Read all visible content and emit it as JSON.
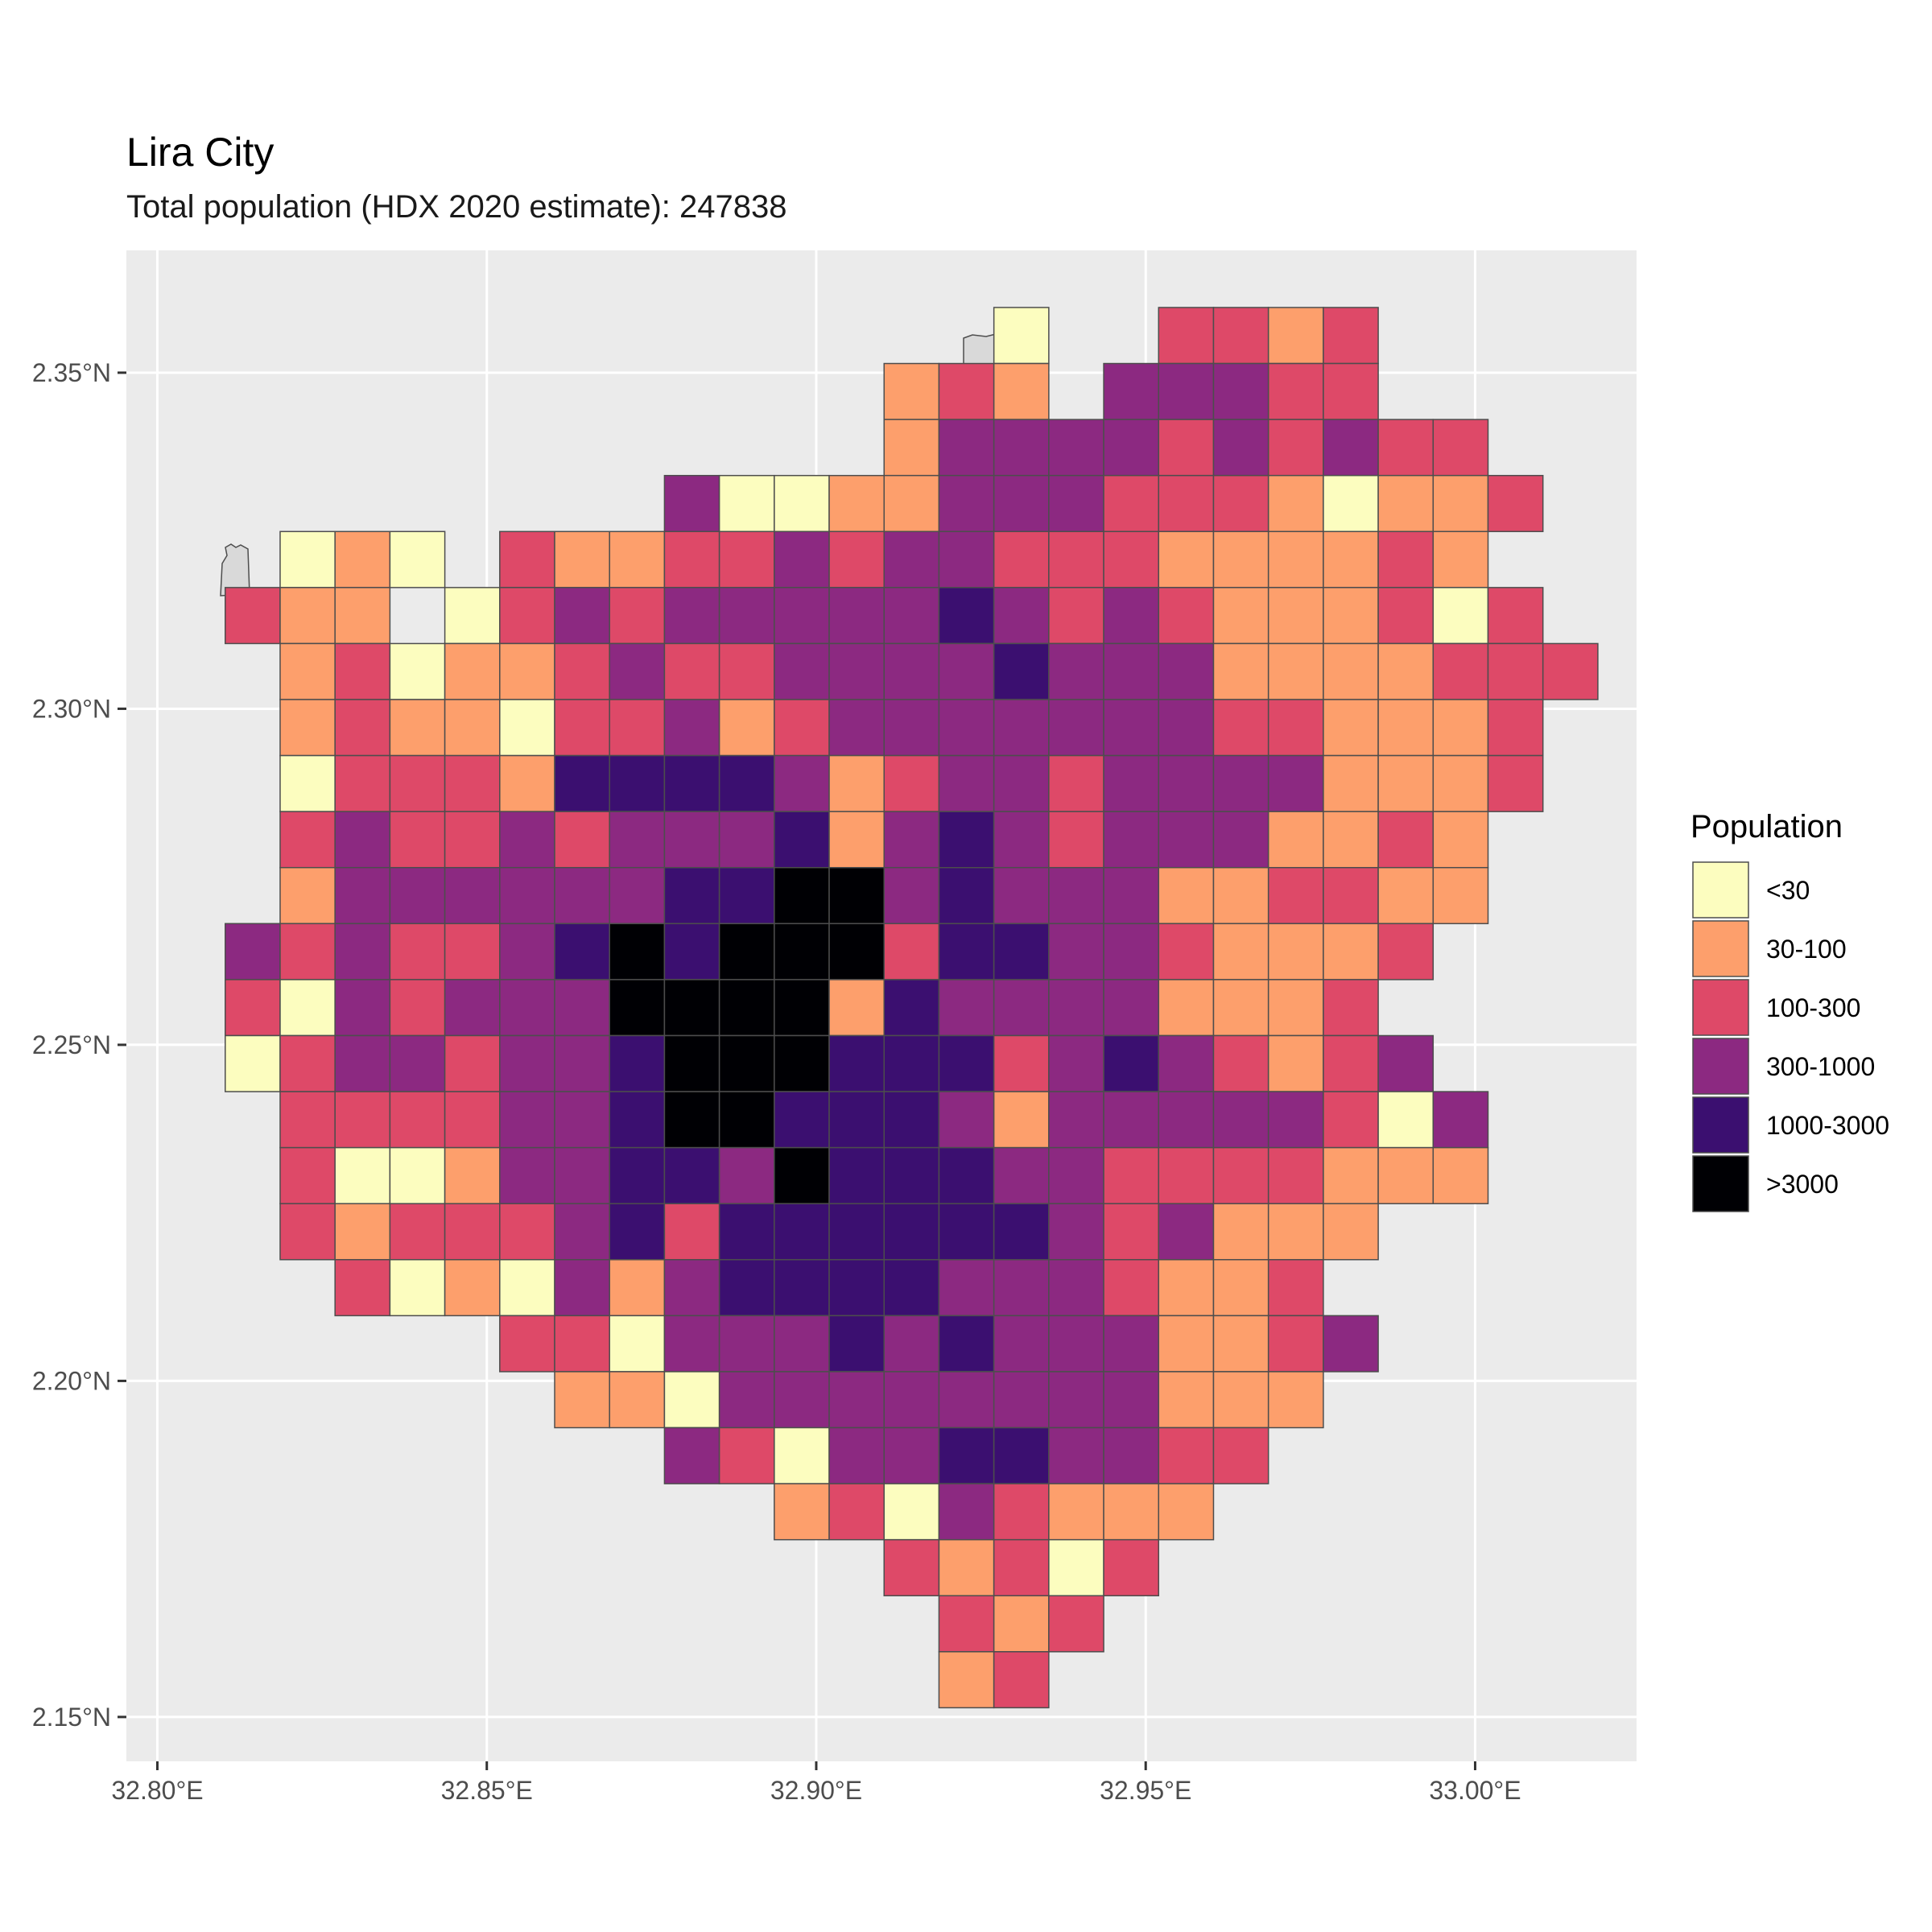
{
  "chart_data": {
    "type": "heatmap",
    "title": "Lira City",
    "subtitle": "Total population (HDX 2020 estimate): 247838",
    "xlabel": "",
    "ylabel": "",
    "grid": true,
    "legend_position": "right",
    "x_ticks": [
      {
        "value": 32.8,
        "label": "32.80°E"
      },
      {
        "value": 32.85,
        "label": "32.85°E"
      },
      {
        "value": 32.9,
        "label": "32.90°E"
      },
      {
        "value": 32.95,
        "label": "32.95°E"
      },
      {
        "value": 33.0,
        "label": "33.00°E"
      }
    ],
    "y_ticks": [
      {
        "value": 2.15,
        "label": "2.15°N"
      },
      {
        "value": 2.2,
        "label": "2.20°N"
      },
      {
        "value": 2.25,
        "label": "2.25°N"
      },
      {
        "value": 2.3,
        "label": "2.30°N"
      },
      {
        "value": 2.35,
        "label": "2.35°N"
      }
    ],
    "xlim": [
      32.7953,
      33.0245
    ],
    "ylim": [
      2.1434,
      2.3682
    ],
    "legend": {
      "title": "Population",
      "classes": [
        {
          "key": "A",
          "label": "<30",
          "color": "#FCFDBF"
        },
        {
          "key": "B",
          "label": "30-100",
          "color": "#FD9F6C"
        },
        {
          "key": "C",
          "label": "100-300",
          "color": "#DE4968"
        },
        {
          "key": "D",
          "label": "300-1000",
          "color": "#8C2981"
        },
        {
          "key": "E",
          "label": "1000-3000",
          "color": "#3B0F70"
        },
        {
          "key": "F",
          "label": ">3000",
          "color": "#000004"
        }
      ]
    },
    "grid_cells": {
      "lon_first_column": 32.8103,
      "lat_top_row": 2.3597,
      "cell_size_deg": 0.008333,
      "rows": [
        "..............A..CCBC.....",
        "............BCB.DDDCC.....",
        "............BDDDDCDCDCC...",
        "........DAABBDDDCCCBABBC..",
        ".ABA.CBBCCDCDDCCCBBBBCB...",
        "CBB.ACDCDDDDDEDCDCBBBCAC..",
        ".BCABBCDCCDDDDEDDDBBBBCCC.",
        ".BCBBACCDBCDDDDDDDCCBBBC..",
        ".ACCCBEEEEDBCDDCDDDDBBBC..",
        ".CDCCDCDDDEBDEDCDDDBBCB...",
        ".BDDDDDDEEFFDEDDDBBCCBB...",
        "DCDCCDEFEFFFCEEDDCBBBC....",
        "CADCDDDFFFFBEDDDDBBBC.....",
        "ACDDCDDEFFFEEECDEDCBCD....",
        ".CCCCDDEFFEEEDBDDDDDCAD...",
        ".CAABDDEEDFEEEDDCCCCBBB...",
        ".CBCCCDECEEEEEEDCDBBB.....",
        "..CABADBDEEEEDDDCBBC......",
        ".....CCADDDEDEDDDBBCD.....",
        "......BBADDDDDDDDBBB......",
        "........DCADDEEDDCC.......",
        "..........BCADCBBB........",
        "............CBCAC.........",
        ".............CBC..........",
        ".............BC..........."
      ]
    }
  }
}
